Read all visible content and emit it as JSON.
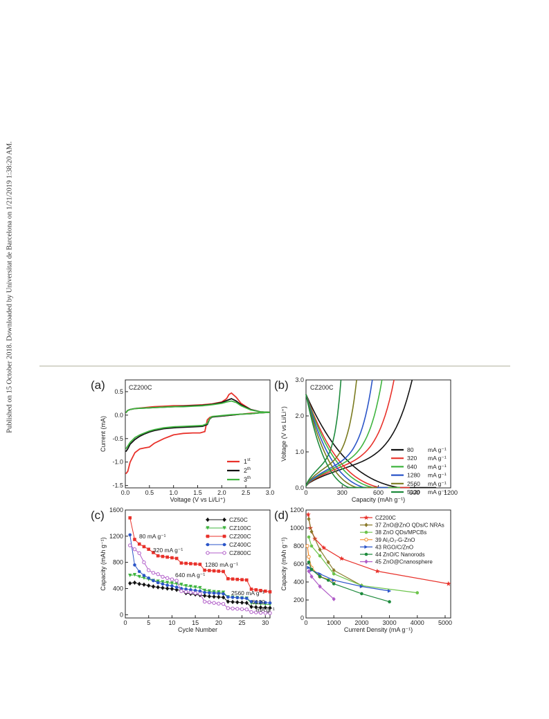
{
  "side_note": "Published on 15 October 2018. Downloaded by Universitat de Barcelona on 1/21/2019 1:38:20 AM.",
  "chart_data": [
    {
      "panel": "(a)",
      "type": "line",
      "inset": "CZ200C",
      "xlabel": "Voltage (V vs Li/Li⁺)",
      "ylabel": "Current (mA)",
      "xlim": [
        0,
        3.0
      ],
      "ylim": [
        -1.55,
        0.75
      ],
      "xticks": [
        0.0,
        0.5,
        1.0,
        1.5,
        2.0,
        2.5,
        3.0
      ],
      "xtick_labels": [
        "0.0",
        "0.5",
        "1.0",
        "1.5",
        "2.0",
        "2.5",
        "3.0"
      ],
      "yticks": [
        -1.5,
        -1.0,
        -0.5,
        0.0,
        0.5
      ],
      "ytick_labels": [
        "-1.5",
        "-1.0",
        "-0.5",
        "0.0",
        "0.5"
      ],
      "legend_position": "bottom-right",
      "series": [
        {
          "name": "1st",
          "legend_base": "1",
          "legend_sup": "st",
          "color": "#e8312a",
          "x": [
            0.01,
            0.05,
            0.1,
            0.2,
            0.3,
            0.4,
            0.5,
            0.6,
            0.7,
            0.8,
            0.9,
            1.0,
            1.2,
            1.4,
            1.55,
            1.65,
            1.7,
            1.75,
            1.8,
            2.0,
            2.2,
            2.4,
            2.6,
            2.8,
            3.0,
            2.8,
            2.6,
            2.4,
            2.3,
            2.2,
            2.15,
            2.1,
            2.0,
            1.8,
            1.6,
            1.4,
            1.2,
            1.0,
            0.8,
            0.6,
            0.5,
            0.4,
            0.3,
            0.2,
            0.1,
            0.05,
            0.01
          ],
          "y": [
            -1.25,
            -1.2,
            -1.0,
            -0.8,
            -0.72,
            -0.7,
            -0.68,
            -0.6,
            -0.55,
            -0.5,
            -0.46,
            -0.42,
            -0.39,
            -0.38,
            -0.38,
            -0.35,
            -0.1,
            -0.05,
            -0.03,
            -0.02,
            0.0,
            0.02,
            0.04,
            0.05,
            0.06,
            0.07,
            0.12,
            0.25,
            0.38,
            0.47,
            0.44,
            0.35,
            0.28,
            0.24,
            0.22,
            0.21,
            0.2,
            0.2,
            0.19,
            0.18,
            0.17,
            0.16,
            0.15,
            0.14,
            0.12,
            0.1,
            0.05
          ]
        },
        {
          "name": "2th",
          "legend_base": "2",
          "legend_sup": "th",
          "color": "#111111",
          "x": [
            0.01,
            0.05,
            0.1,
            0.2,
            0.3,
            0.4,
            0.5,
            0.6,
            0.8,
            1.0,
            1.2,
            1.4,
            1.6,
            1.7,
            1.75,
            1.8,
            2.0,
            2.2,
            2.4,
            2.6,
            2.8,
            3.0,
            2.8,
            2.6,
            2.4,
            2.3,
            2.2,
            2.1,
            2.0,
            1.8,
            1.6,
            1.4,
            1.2,
            1.0,
            0.8,
            0.6,
            0.4,
            0.2,
            0.1,
            0.05,
            0.01
          ],
          "y": [
            -0.78,
            -0.72,
            -0.62,
            -0.52,
            -0.45,
            -0.4,
            -0.36,
            -0.33,
            -0.29,
            -0.27,
            -0.26,
            -0.25,
            -0.24,
            -0.2,
            -0.08,
            -0.04,
            -0.02,
            0.0,
            0.02,
            0.03,
            0.05,
            0.06,
            0.07,
            0.12,
            0.22,
            0.3,
            0.35,
            0.31,
            0.27,
            0.23,
            0.21,
            0.2,
            0.19,
            0.18,
            0.17,
            0.16,
            0.15,
            0.14,
            0.12,
            0.1,
            0.05
          ]
        },
        {
          "name": "3th",
          "legend_base": "3",
          "legend_sup": "th",
          "color": "#3fb43f",
          "x": [
            0.01,
            0.05,
            0.1,
            0.2,
            0.3,
            0.4,
            0.5,
            0.6,
            0.8,
            1.0,
            1.2,
            1.4,
            1.6,
            1.7,
            1.75,
            1.8,
            2.0,
            2.2,
            2.4,
            2.6,
            2.8,
            3.0,
            2.8,
            2.6,
            2.4,
            2.3,
            2.2,
            2.1,
            2.0,
            1.8,
            1.6,
            1.4,
            1.2,
            1.0,
            0.8,
            0.6,
            0.4,
            0.2,
            0.1,
            0.05,
            0.01
          ],
          "y": [
            -0.72,
            -0.66,
            -0.58,
            -0.48,
            -0.42,
            -0.38,
            -0.34,
            -0.31,
            -0.27,
            -0.25,
            -0.24,
            -0.23,
            -0.22,
            -0.18,
            -0.07,
            -0.03,
            -0.01,
            0.01,
            0.02,
            0.03,
            0.05,
            0.06,
            0.07,
            0.11,
            0.2,
            0.27,
            0.3,
            0.28,
            0.25,
            0.22,
            0.2,
            0.19,
            0.18,
            0.18,
            0.17,
            0.16,
            0.15,
            0.14,
            0.12,
            0.1,
            0.05
          ]
        }
      ]
    },
    {
      "panel": "(b)",
      "type": "line",
      "inset": "CZ200C",
      "xlabel": "Capacity (mAh g⁻¹)",
      "ylabel": "Voltage (V vs Li/Li⁺)",
      "xlim": [
        0,
        1200
      ],
      "ylim": [
        0,
        3.0
      ],
      "xticks": [
        0,
        300,
        600,
        900,
        1200
      ],
      "xtick_labels": [
        "0",
        "300",
        "600",
        "900",
        "1200"
      ],
      "yticks": [
        0.0,
        1.0,
        2.0,
        3.0
      ],
      "ytick_labels": [
        "0.0",
        "1.0",
        "2.0",
        "3.0"
      ],
      "legend_position": "right",
      "series": [
        {
          "name": "80",
          "unit": "mA g⁻¹",
          "color": "#111111",
          "discharge_cap": 1080,
          "charge_cap": 880
        },
        {
          "name": "320",
          "unit": "mA g⁻¹",
          "color": "#e8312a",
          "discharge_cap": 860,
          "charge_cap": 730
        },
        {
          "name": "640",
          "unit": "mA g⁻¹",
          "color": "#3fb43f",
          "discharge_cap": 780,
          "charge_cap": 630
        },
        {
          "name": "1280",
          "unit": "mA g⁻¹",
          "color": "#2b55c8",
          "discharge_cap": 680,
          "charge_cap": 550
        },
        {
          "name": "2560",
          "unit": "mA g⁻¹",
          "color": "#7a7a1e",
          "discharge_cap": 590,
          "charge_cap": 420
        },
        {
          "name": "5120",
          "unit": "mA g⁻¹",
          "color": "#1d8a3c",
          "discharge_cap": 500,
          "charge_cap": 290
        }
      ]
    },
    {
      "panel": "(c)",
      "type": "scatter",
      "xlabel": "Cycle Number",
      "ylabel": "Capacity (mAh g⁻¹)",
      "xlim": [
        0,
        31
      ],
      "ylim": [
        -50,
        1600
      ],
      "xticks": [
        0,
        5,
        10,
        15,
        20,
        25,
        30
      ],
      "xtick_labels": [
        "0",
        "5",
        "10",
        "15",
        "20",
        "25",
        "30"
      ],
      "yticks": [
        0,
        400,
        800,
        1200,
        1600
      ],
      "ytick_labels": [
        "0",
        "400",
        "800",
        "1200",
        "1600"
      ],
      "legend_position": "top-right",
      "x": [
        1,
        2,
        3,
        4,
        5,
        6,
        7,
        8,
        9,
        10,
        11,
        12,
        13,
        14,
        15,
        16,
        17,
        18,
        19,
        20,
        21,
        22,
        23,
        24,
        25,
        26,
        27,
        28,
        29,
        30,
        31
      ],
      "series": [
        {
          "name": "CZ50C",
          "color": "#111111",
          "marker": "diamond",
          "values": [
            480,
            490,
            470,
            460,
            445,
            430,
            420,
            410,
            400,
            395,
            380,
            370,
            330,
            320,
            310,
            300,
            290,
            280,
            275,
            270,
            265,
            200,
            195,
            190,
            185,
            180,
            120,
            115,
            110,
            108,
            105
          ]
        },
        {
          "name": "CZ100C",
          "color": "#3fb43f",
          "marker": "triangle-down",
          "values": [
            600,
            610,
            580,
            560,
            540,
            520,
            510,
            500,
            490,
            480,
            470,
            460,
            440,
            430,
            420,
            410,
            370,
            360,
            350,
            345,
            340,
            270,
            265,
            260,
            255,
            250,
            175,
            170,
            165,
            160,
            155
          ]
        },
        {
          "name": "CZ200C",
          "color": "#e8312a",
          "marker": "square",
          "values": [
            1480,
            1150,
            1080,
            1040,
            1000,
            950,
            900,
            890,
            880,
            870,
            860,
            790,
            785,
            780,
            775,
            770,
            680,
            675,
            670,
            665,
            660,
            550,
            545,
            540,
            535,
            530,
            390,
            380,
            370,
            360,
            350
          ]
        },
        {
          "name": "CZ400C",
          "color": "#2b55c8",
          "marker": "circle",
          "values": [
            1220,
            760,
            660,
            600,
            560,
            520,
            490,
            470,
            450,
            440,
            420,
            400,
            390,
            380,
            370,
            360,
            340,
            335,
            330,
            325,
            320,
            270,
            265,
            260,
            255,
            250,
            200,
            195,
            190,
            185,
            180
          ]
        },
        {
          "name": "CZ800C",
          "color": "#b05cc8",
          "marker": "circle-open",
          "values": [
            1060,
            1000,
            940,
            800,
            680,
            640,
            620,
            580,
            560,
            540,
            520,
            360,
            350,
            340,
            330,
            320,
            200,
            190,
            180,
            170,
            165,
            100,
            95,
            90,
            85,
            80,
            40,
            35,
            30,
            28,
            25
          ]
        }
      ],
      "annotations": [
        "80 mA g⁻¹",
        "320 mA g⁻¹",
        "640 mA g⁻¹",
        "1280 mA g⁻¹",
        "2560 mA g⁻¹",
        "5120",
        "mA g⁻¹"
      ]
    },
    {
      "panel": "(d)",
      "type": "line",
      "xlabel": "Current Density (mA g⁻¹)",
      "ylabel": "Capacity (mAh g⁻¹)",
      "xlim": [
        0,
        5200
      ],
      "ylim": [
        0,
        1200
      ],
      "xticks": [
        0,
        1000,
        2000,
        3000,
        4000,
        5000
      ],
      "xtick_labels": [
        "0",
        "1000",
        "2000",
        "3000",
        "4000",
        "5000"
      ],
      "yticks": [
        0,
        200,
        400,
        600,
        800,
        1000,
        1200
      ],
      "ytick_labels": [
        "0",
        "200",
        "400",
        "600",
        "800",
        "1000",
        "1200"
      ],
      "legend_position": "top-right",
      "series": [
        {
          "name": "CZ200C",
          "color": "#e8312a",
          "marker": "star",
          "x": [
            80,
            160,
            320,
            640,
            1280,
            2560,
            5120
          ],
          "y": [
            1150,
            1000,
            880,
            780,
            660,
            520,
            380
          ]
        },
        {
          "name": "37 ZnO@ZnO QDs/C NRAs",
          "color": "#8a7a2a",
          "marker": "diamond",
          "x": [
            100,
            200,
            500,
            800,
            1000,
            2000
          ],
          "y": [
            1100,
            960,
            760,
            620,
            530,
            360
          ]
        },
        {
          "name": "38 ZnO QDs/MPCBs",
          "color": "#6cc44a",
          "marker": "circle",
          "x": [
            100,
            200,
            500,
            1000,
            2000,
            4000
          ],
          "y": [
            900,
            800,
            690,
            490,
            360,
            280
          ]
        },
        {
          "name": "39 Al₂O₃-G-ZnO",
          "color": "#f08a2a",
          "marker": "circle-open",
          "x": [
            50,
            100,
            200,
            500,
            1000
          ],
          "y": [
            800,
            680,
            560,
            460,
            410
          ]
        },
        {
          "name": "43 RGO/C/ZnO",
          "color": "#2b55c8",
          "marker": "triangle-right",
          "x": [
            100,
            200,
            500,
            1000,
            2000,
            3000
          ],
          "y": [
            560,
            530,
            490,
            420,
            350,
            300
          ]
        },
        {
          "name": "44 ZnO/C Nanorods",
          "color": "#1d8a3c",
          "marker": "circle",
          "x": [
            100,
            200,
            500,
            800,
            1000,
            2000,
            3000
          ],
          "y": [
            620,
            540,
            460,
            420,
            380,
            270,
            180
          ]
        },
        {
          "name": "45 ZnO@Cnanosphere",
          "color": "#b05cc8",
          "marker": "diamond",
          "x": [
            100,
            200,
            500,
            1000
          ],
          "y": [
            520,
            460,
            350,
            210
          ]
        }
      ]
    }
  ]
}
